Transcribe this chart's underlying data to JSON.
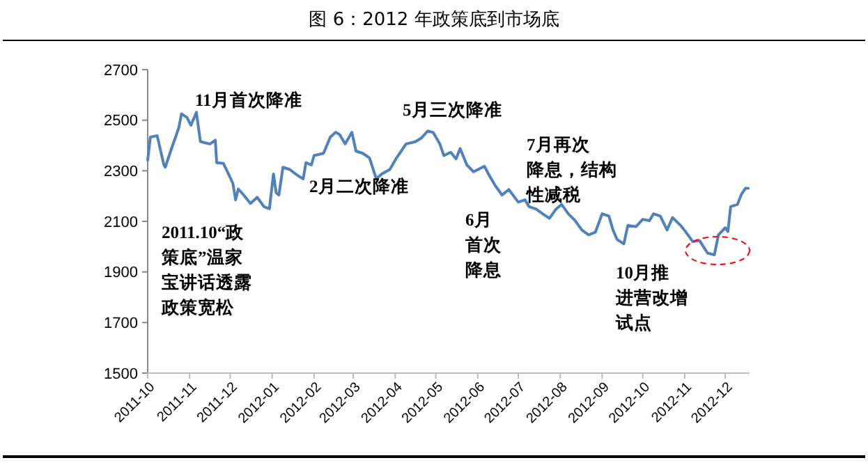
{
  "chart_data": {
    "type": "line",
    "title": "图 6：2012 年政策底到市场底",
    "color": "#4f81bd",
    "grid": false,
    "marker": "none",
    "line_style": "solid",
    "xlim": [
      "2011-10-01",
      "2012-12-19"
    ],
    "xticks": [
      {
        "value": "2011-10-01",
        "label": "2011-10"
      },
      {
        "value": "2011-11-01",
        "label": "2011-11"
      },
      {
        "value": "2011-12-01",
        "label": "2011-12"
      },
      {
        "value": "2012-01-01",
        "label": "2012-01"
      },
      {
        "value": "2012-02-01",
        "label": "2012-02"
      },
      {
        "value": "2012-03-01",
        "label": "2012-03"
      },
      {
        "value": "2012-04-01",
        "label": "2012-04"
      },
      {
        "value": "2012-05-01",
        "label": "2012-05"
      },
      {
        "value": "2012-06-01",
        "label": "2012-06"
      },
      {
        "value": "2012-07-01",
        "label": "2012-07"
      },
      {
        "value": "2012-08-01",
        "label": "2012-08"
      },
      {
        "value": "2012-09-01",
        "label": "2012-09"
      },
      {
        "value": "2012-10-01",
        "label": "2012-10"
      },
      {
        "value": "2012-11-01",
        "label": "2012-11"
      },
      {
        "value": "2012-12-01",
        "label": "2012-12"
      }
    ],
    "ylim": [
      1500,
      2700
    ],
    "yticks": [
      1500,
      1700,
      1900,
      2100,
      2300,
      2500,
      2700
    ],
    "x": [
      "2011-10-01",
      "2011-10-03",
      "2011-10-08",
      "2011-10-13",
      "2011-10-14",
      "2011-10-18",
      "2011-10-21",
      "2011-10-24",
      "2011-10-26",
      "2011-10-30",
      "2011-11-02",
      "2011-11-06",
      "2011-11-09",
      "2011-11-16",
      "2011-11-20",
      "2011-11-21",
      "2011-11-26",
      "2011-11-29",
      "2011-12-03",
      "2011-12-05",
      "2011-12-07",
      "2011-12-11",
      "2011-12-16",
      "2011-12-21",
      "2011-12-26",
      "2011-12-30",
      "2012-01-02",
      "2012-01-04",
      "2012-01-06",
      "2012-01-09",
      "2012-01-14",
      "2012-01-20",
      "2012-01-24",
      "2012-01-26",
      "2012-01-30",
      "2012-02-01",
      "2012-02-08",
      "2012-02-13",
      "2012-02-17",
      "2012-02-20",
      "2012-02-24",
      "2012-02-29",
      "2012-03-03",
      "2012-03-08",
      "2012-03-13",
      "2012-03-18",
      "2012-03-22",
      "2012-03-28",
      "2012-04-02",
      "2012-04-09",
      "2012-04-16",
      "2012-04-20",
      "2012-04-25",
      "2012-04-29",
      "2012-05-04",
      "2012-05-07",
      "2012-05-12",
      "2012-05-16",
      "2012-05-19",
      "2012-05-24",
      "2012-05-29",
      "2012-06-06",
      "2012-06-09",
      "2012-06-14",
      "2012-06-19",
      "2012-06-24",
      "2012-07-01",
      "2012-07-06",
      "2012-07-09",
      "2012-07-14",
      "2012-07-19",
      "2012-07-24",
      "2012-07-29",
      "2012-08-02",
      "2012-08-07",
      "2012-08-12",
      "2012-08-17",
      "2012-08-22",
      "2012-08-27",
      "2012-09-01",
      "2012-09-06",
      "2012-09-09",
      "2012-09-12",
      "2012-09-17",
      "2012-09-20",
      "2012-09-26",
      "2012-10-01",
      "2012-10-06",
      "2012-10-09",
      "2012-10-14",
      "2012-10-19",
      "2012-10-23",
      "2012-10-29",
      "2012-11-02",
      "2012-11-07",
      "2012-11-12",
      "2012-11-18",
      "2012-11-23",
      "2012-11-26",
      "2012-12-01",
      "2012-12-03",
      "2012-12-05",
      "2012-12-10",
      "2012-12-13",
      "2012-12-16",
      "2012-12-18"
    ],
    "values": [
      2342,
      2433,
      2439,
      2323,
      2314,
      2378,
      2424,
      2470,
      2525,
      2511,
      2480,
      2531,
      2415,
      2406,
      2421,
      2332,
      2329,
      2296,
      2250,
      2185,
      2228,
      2204,
      2171,
      2195,
      2158,
      2150,
      2287,
      2213,
      2204,
      2314,
      2305,
      2281,
      2268,
      2332,
      2323,
      2360,
      2369,
      2433,
      2452,
      2443,
      2406,
      2452,
      2378,
      2369,
      2351,
      2268,
      2287,
      2305,
      2351,
      2406,
      2415,
      2428,
      2457,
      2452,
      2406,
      2360,
      2373,
      2347,
      2388,
      2323,
      2296,
      2318,
      2287,
      2241,
      2204,
      2226,
      2176,
      2185,
      2158,
      2149,
      2130,
      2112,
      2149,
      2167,
      2130,
      2103,
      2066,
      2047,
      2057,
      2130,
      2121,
      2066,
      2029,
      2011,
      2084,
      2079,
      2108,
      2103,
      2130,
      2121,
      2066,
      2115,
      2084,
      2057,
      2020,
      2024,
      1974,
      1968,
      2047,
      2075,
      2060,
      2158,
      2167,
      2207,
      2231,
      2231
    ],
    "annotations": [
      "11月首次降准",
      "2011.10“政策底”温家宝讲话透露政策宽松",
      "2月二次降准",
      "5月三次降准",
      "6月首次降息",
      "7月再次降息，结构性减税",
      "10月推进营改增试点"
    ]
  }
}
